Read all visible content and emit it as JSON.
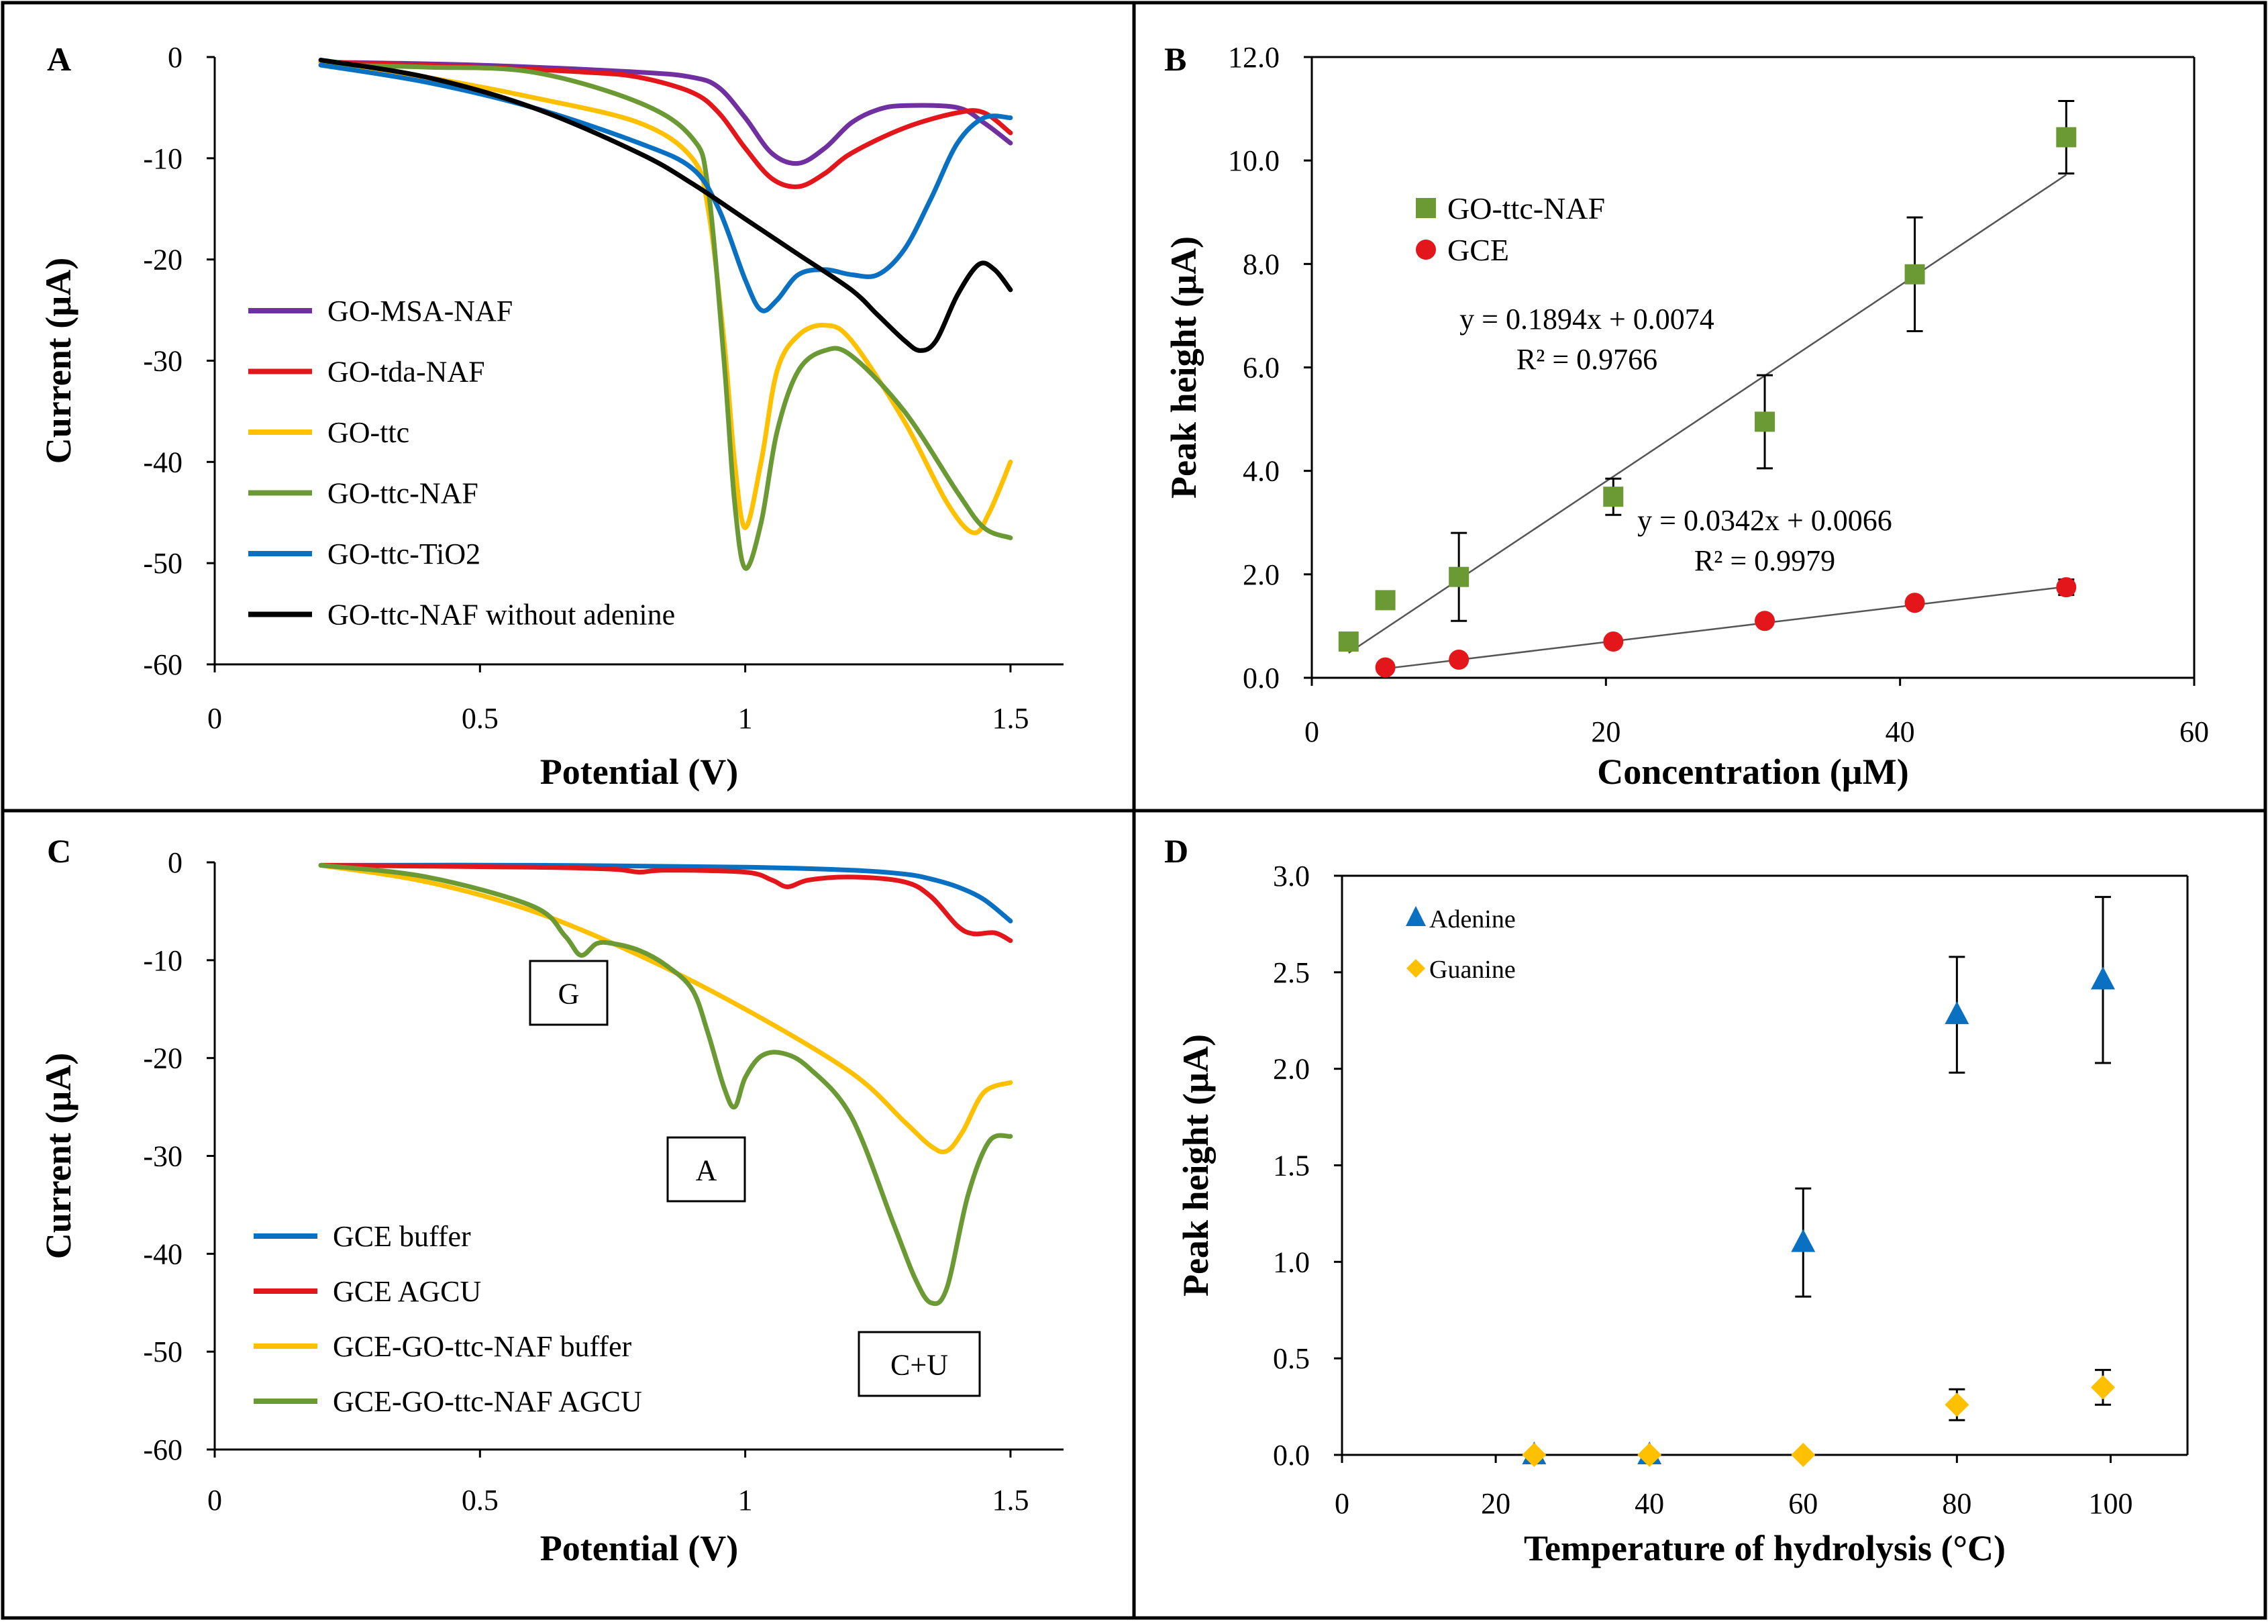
{
  "figure": {
    "panels": [
      {
        "panel_letter": "A",
        "xlabel": "Potential (V)",
        "ylabel": "Current (µA)",
        "xticks": [
          "0",
          "0.5",
          "1",
          "1.5"
        ],
        "yticks": [
          "0",
          "-10",
          "-20",
          "-30",
          "-40",
          "-50",
          "-60"
        ],
        "legend": [
          "GO-MSA-NAF",
          "GO-tda-NAF",
          "GO-ttc",
          "GO-ttc-NAF",
          "GO-ttc-TiO2",
          "GO-ttc-NAF without adenine"
        ]
      },
      {
        "panel_letter": "B",
        "xlabel": "Concentration (µM)",
        "ylabel": "Peak height (µA)",
        "xticks": [
          "0",
          "20",
          "40",
          "60"
        ],
        "yticks": [
          "0.0",
          "2.0",
          "4.0",
          "6.0",
          "8.0",
          "10.0",
          "12.0"
        ],
        "legend": [
          "GO-ttc-NAF",
          "GCE"
        ],
        "equations": [
          {
            "eq": "y = 0.1894x + 0.0074",
            "r2": "R² = 0.9766"
          },
          {
            "eq": "y = 0.0342x + 0.0066",
            "r2": "R² = 0.9979"
          }
        ]
      },
      {
        "panel_letter": "C",
        "xlabel": "Potential (V)",
        "ylabel": "Current (µA)",
        "xticks": [
          "0",
          "0.5",
          "1",
          "1.5"
        ],
        "yticks": [
          "0",
          "-10",
          "-20",
          "-30",
          "-40",
          "-50",
          "-60"
        ],
        "legend": [
          "GCE buffer",
          "GCE AGCU",
          "GCE-GO-ttc-NAF buffer",
          "GCE-GO-ttc-NAF AGCU"
        ],
        "annotations": [
          "G",
          "A",
          "C+U"
        ]
      },
      {
        "panel_letter": "D",
        "xlabel": "Temperature of hydrolysis (°C)",
        "ylabel": "Peak height (µA)",
        "xticks": [
          "0",
          "20",
          "40",
          "60",
          "80",
          "100"
        ],
        "yticks": [
          "0.0",
          "0.5",
          "1.0",
          "1.5",
          "2.0",
          "2.5",
          "3.0"
        ],
        "legend": [
          "Adenine",
          "Guanine"
        ]
      }
    ]
  },
  "colors": {
    "purple": "#7030A0",
    "red": "#E3161B",
    "yellow": "#FFC000",
    "green": "#6B9A34",
    "blue": "#0A71C2",
    "black": "#000000",
    "grey_line": "#555555"
  },
  "chart_data": [
    {
      "type": "line",
      "title": "A",
      "xlabel": "Potential (V)",
      "ylabel": "Current (µA)",
      "xlim": [
        0,
        1.6
      ],
      "ylim": [
        -60,
        0
      ],
      "series": [
        {
          "name": "GO-MSA-NAF",
          "color": "#7030A0",
          "x": [
            0.2,
            0.5,
            0.8,
            0.9,
            0.95,
            1.0,
            1.05,
            1.1,
            1.15,
            1.2,
            1.25,
            1.3,
            1.4,
            1.45,
            1.5
          ],
          "y": [
            -0.5,
            -0.8,
            -1.5,
            -2.0,
            -3.0,
            -6.0,
            -9.5,
            -10.5,
            -9.0,
            -6.5,
            -5.2,
            -4.8,
            -5.0,
            -6.5,
            -8.5
          ]
        },
        {
          "name": "GO-tda-NAF",
          "color": "#E3161B",
          "x": [
            0.2,
            0.5,
            0.7,
            0.8,
            0.9,
            0.95,
            1.0,
            1.05,
            1.1,
            1.15,
            1.2,
            1.3,
            1.4,
            1.45,
            1.5
          ],
          "y": [
            -0.5,
            -1.0,
            -1.5,
            -2.0,
            -3.5,
            -5.5,
            -9.0,
            -12.0,
            -12.8,
            -11.5,
            -9.5,
            -7.0,
            -5.5,
            -5.5,
            -7.5
          ]
        },
        {
          "name": "GO-ttc",
          "color": "#FFC000",
          "x": [
            0.2,
            0.4,
            0.6,
            0.8,
            0.9,
            0.93,
            0.96,
            0.98,
            1.0,
            1.03,
            1.06,
            1.1,
            1.15,
            1.2,
            1.3,
            1.38,
            1.43,
            1.46,
            1.5
          ],
          "y": [
            -0.5,
            -2.0,
            -4.0,
            -6.5,
            -10.0,
            -15.0,
            -28.0,
            -40.0,
            -46.5,
            -40.0,
            -31.0,
            -27.5,
            -26.5,
            -28.0,
            -36.0,
            -44.0,
            -47.0,
            -45.0,
            -40.0
          ]
        },
        {
          "name": "GO-ttc-NAF",
          "color": "#6B9A34",
          "x": [
            0.2,
            0.4,
            0.6,
            0.8,
            0.9,
            0.93,
            0.96,
            0.98,
            1.0,
            1.03,
            1.06,
            1.1,
            1.15,
            1.2,
            1.3,
            1.4,
            1.45,
            1.5
          ],
          "y": [
            -0.8,
            -1.0,
            -1.5,
            -4.5,
            -8.0,
            -13.0,
            -30.0,
            -44.0,
            -50.5,
            -46.0,
            -37.0,
            -31.0,
            -29.0,
            -29.5,
            -35.0,
            -43.0,
            -46.5,
            -47.5
          ]
        },
        {
          "name": "GO-ttc-TiO2",
          "color": "#0A71C2",
          "x": [
            0.2,
            0.4,
            0.6,
            0.8,
            0.9,
            0.95,
            1.0,
            1.03,
            1.06,
            1.1,
            1.15,
            1.2,
            1.25,
            1.3,
            1.35,
            1.4,
            1.45,
            1.5
          ],
          "y": [
            -0.8,
            -2.5,
            -5.0,
            -8.5,
            -11.0,
            -15.0,
            -22.0,
            -25.0,
            -24.0,
            -21.5,
            -21.0,
            -21.5,
            -21.5,
            -19.0,
            -14.0,
            -8.5,
            -6.0,
            -6.0
          ]
        },
        {
          "name": "GO-ttc-NAF without adenine",
          "color": "#000000",
          "x": [
            0.2,
            0.4,
            0.6,
            0.8,
            0.9,
            1.0,
            1.1,
            1.2,
            1.25,
            1.3,
            1.33,
            1.36,
            1.4,
            1.44,
            1.47,
            1.5
          ],
          "y": [
            -0.3,
            -2.0,
            -5.0,
            -9.5,
            -12.5,
            -16.0,
            -19.5,
            -23.0,
            -25.5,
            -28.0,
            -29.0,
            -28.0,
            -23.5,
            -20.5,
            -21.0,
            -23.0
          ]
        }
      ]
    },
    {
      "type": "scatter",
      "title": "B",
      "xlabel": "Concentration (µM)",
      "ylabel": "Peak height (µA)",
      "xlim": [
        0,
        60
      ],
      "ylim": [
        0,
        12
      ],
      "series": [
        {
          "name": "GO-ttc-NAF",
          "color": "#6B9A34",
          "marker": "square",
          "x": [
            2.5,
            5,
            10,
            20.5,
            30.8,
            41,
            51.3
          ],
          "y": [
            0.7,
            1.5,
            1.95,
            3.5,
            4.95,
            7.8,
            10.45
          ],
          "err": [
            0,
            0,
            0.85,
            0.35,
            0.9,
            1.1,
            0.7
          ],
          "fit": {
            "slope": 0.1894,
            "intercept": 0.0074,
            "x_range": [
              2.5,
              51.3
            ]
          }
        },
        {
          "name": "GCE",
          "color": "#E3161B",
          "marker": "circle",
          "x": [
            5,
            10,
            20.5,
            30.8,
            41,
            51.3
          ],
          "y": [
            0.2,
            0.35,
            0.7,
            1.1,
            1.45,
            1.75
          ],
          "err": [
            0,
            0,
            0,
            0,
            0,
            0.15
          ],
          "fit": {
            "slope": 0.0342,
            "intercept": 0.0066,
            "x_range": [
              5,
              51.3
            ]
          }
        }
      ]
    },
    {
      "type": "line",
      "title": "C",
      "xlabel": "Potential (V)",
      "ylabel": "Current (µA)",
      "xlim": [
        0,
        1.6
      ],
      "ylim": [
        -60,
        0
      ],
      "series": [
        {
          "name": "GCE buffer",
          "color": "#0A71C2",
          "x": [
            0.2,
            0.6,
            1.0,
            1.2,
            1.3,
            1.35,
            1.4,
            1.45,
            1.5
          ],
          "y": [
            -0.3,
            -0.3,
            -0.5,
            -0.8,
            -1.2,
            -1.7,
            -2.5,
            -3.8,
            -6.0
          ]
        },
        {
          "name": "GCE AGCU",
          "color": "#E3161B",
          "x": [
            0.2,
            0.6,
            0.75,
            0.8,
            0.85,
            1.0,
            1.05,
            1.08,
            1.12,
            1.2,
            1.3,
            1.35,
            1.4,
            1.43,
            1.47,
            1.5
          ],
          "y": [
            -0.3,
            -0.5,
            -0.7,
            -1.0,
            -0.8,
            -1.0,
            -1.8,
            -2.5,
            -1.8,
            -1.5,
            -2.0,
            -3.5,
            -6.5,
            -7.3,
            -7.2,
            -8.0
          ]
        },
        {
          "name": "GCE-GO-ttc-NAF buffer",
          "color": "#FFC000",
          "x": [
            0.2,
            0.4,
            0.6,
            0.8,
            1.0,
            1.2,
            1.3,
            1.35,
            1.38,
            1.41,
            1.45,
            1.5
          ],
          "y": [
            -0.3,
            -2.0,
            -5.0,
            -9.5,
            -15.0,
            -21.5,
            -26.5,
            -29.0,
            -29.5,
            -27.5,
            -23.5,
            -22.5
          ]
        },
        {
          "name": "GCE-GO-ttc-NAF AGCU",
          "color": "#6B9A34",
          "x": [
            0.2,
            0.4,
            0.6,
            0.66,
            0.69,
            0.72,
            0.75,
            0.8,
            0.85,
            0.9,
            0.93,
            0.96,
            0.98,
            1.0,
            1.03,
            1.07,
            1.12,
            1.2,
            1.28,
            1.32,
            1.35,
            1.38,
            1.42,
            1.46,
            1.5
          ],
          "y": [
            -0.3,
            -1.5,
            -4.5,
            -7.5,
            -9.5,
            -8.3,
            -8.3,
            -9.0,
            -10.5,
            -13.0,
            -17.5,
            -23.0,
            -25.0,
            -22.0,
            -19.8,
            -19.5,
            -21.0,
            -26.0,
            -37.0,
            -42.5,
            -45.0,
            -43.5,
            -34.0,
            -28.5,
            -28.0
          ]
        }
      ]
    },
    {
      "type": "scatter",
      "title": "D",
      "xlabel": "Temperature of hydrolysis (°C)",
      "ylabel": "Peak height (µA)",
      "xlim": [
        0,
        110
      ],
      "ylim": [
        0,
        3.0
      ],
      "series": [
        {
          "name": "Adenine",
          "color": "#0A71C2",
          "marker": "triangle",
          "x": [
            25,
            40,
            60,
            80,
            99
          ],
          "y": [
            0.0,
            0.0,
            1.1,
            2.28,
            2.46
          ],
          "err": [
            0,
            0,
            0.28,
            0.3,
            0.43
          ]
        },
        {
          "name": "Guanine",
          "color": "#FFC000",
          "marker": "diamond",
          "x": [
            25,
            40,
            60,
            80,
            99
          ],
          "y": [
            0.0,
            0.0,
            0.0,
            0.26,
            0.35
          ],
          "err": [
            0,
            0,
            0,
            0.08,
            0.09
          ]
        }
      ]
    }
  ]
}
